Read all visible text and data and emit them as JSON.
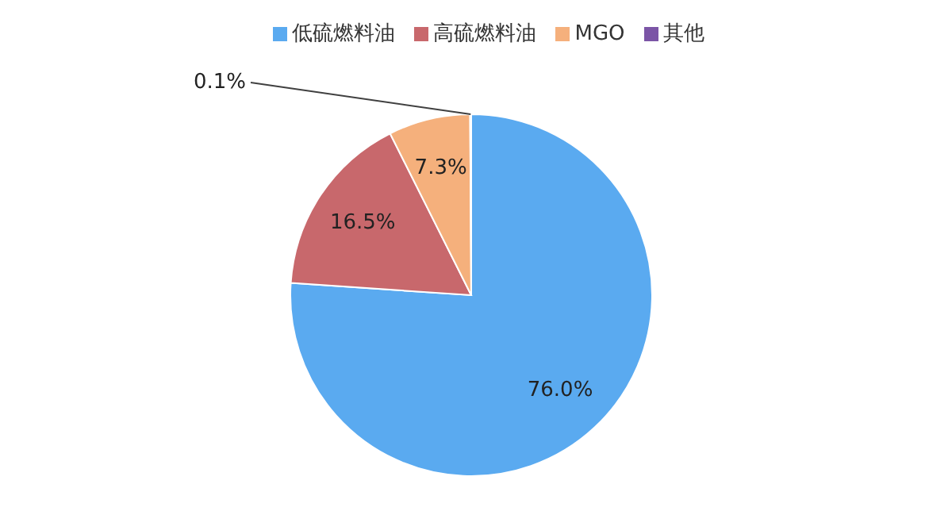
{
  "chart_data": {
    "type": "pie",
    "categories": [
      "低硫燃料油",
      "高硫燃料油",
      "MGO",
      "其他"
    ],
    "values": [
      76.0,
      16.5,
      7.3,
      0.1
    ],
    "value_labels": [
      "76.0%",
      "16.5%",
      "7.3%",
      "0.1%"
    ],
    "colors": [
      "#5aaaf0",
      "#c8686c",
      "#f5b07c",
      "#7b55a6"
    ],
    "legend": "top"
  }
}
